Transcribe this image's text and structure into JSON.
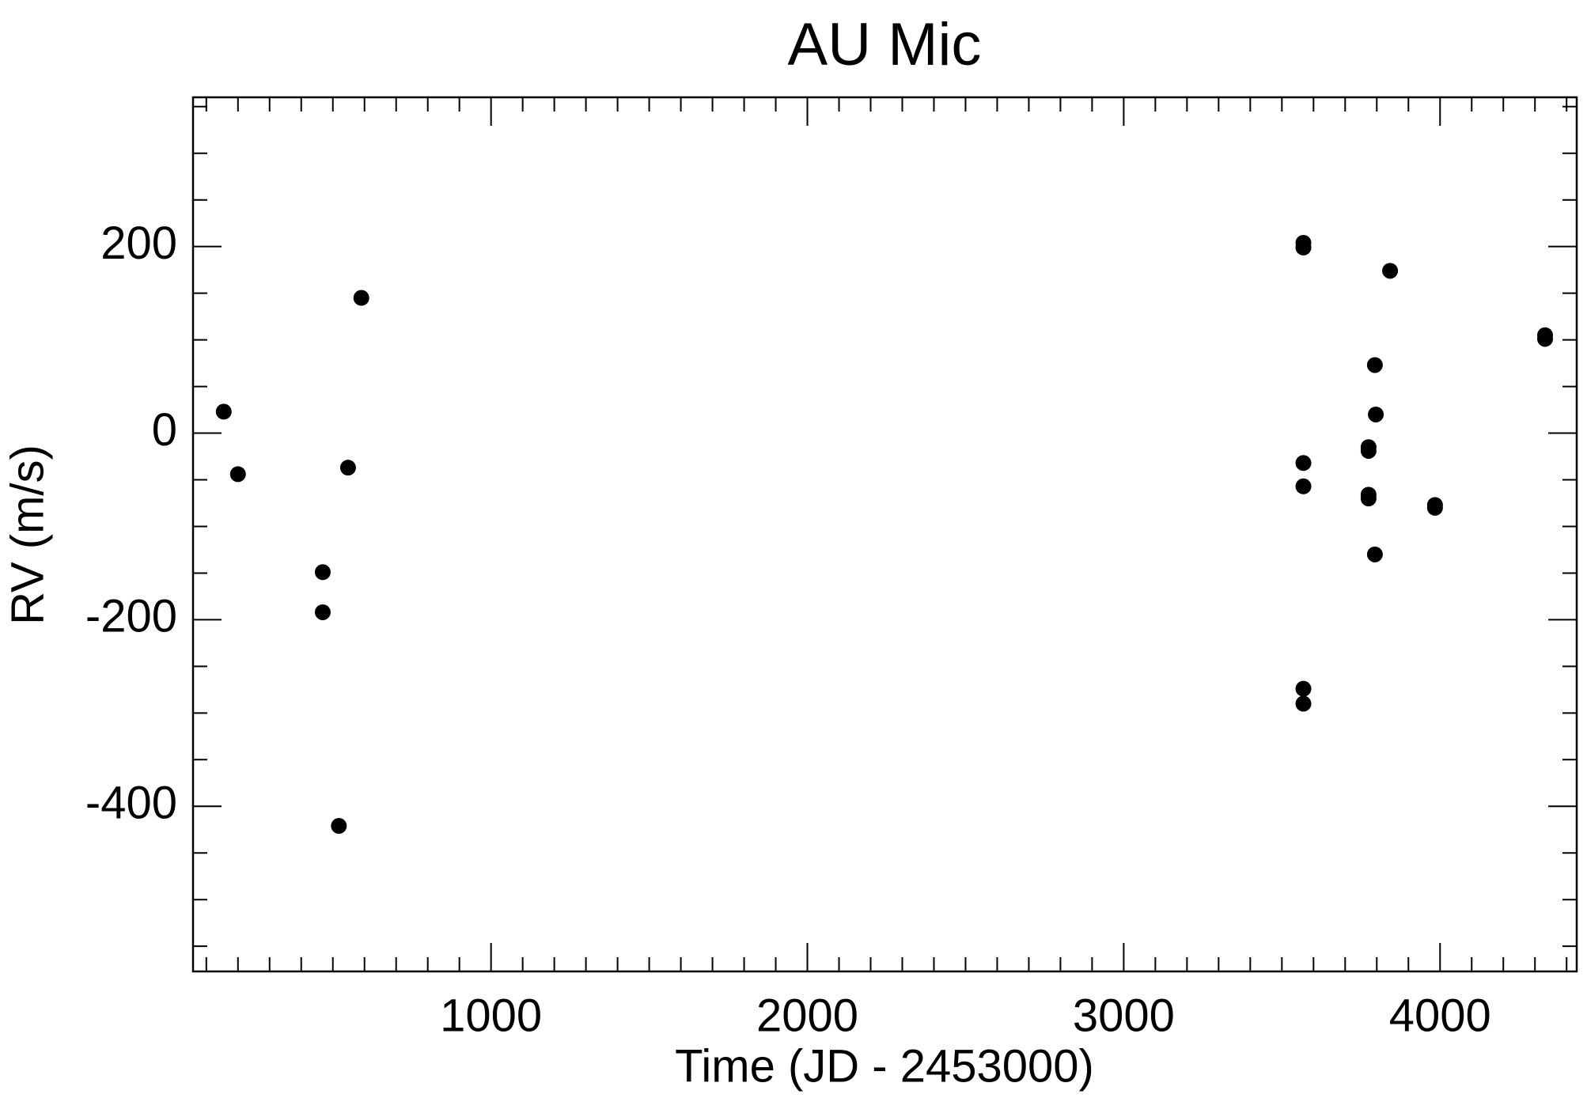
{
  "chart_data": {
    "type": "scatter",
    "title": "AU Mic",
    "x_label": "Time (JD - 2453000)",
    "y_label": "RV (m/s)",
    "series": [
      {
        "color": "#000000",
        "x": [
          155,
          200,
          468,
          468,
          519,
          548,
          590,
          3568,
          3568,
          3568,
          3568,
          3568,
          3568,
          3774,
          3774,
          3774,
          3774,
          3794,
          3797,
          3794,
          3842,
          3984,
          3984,
          4332,
          4332
        ],
        "values": [
          23,
          -44,
          -149,
          -192,
          -421,
          -37,
          145,
          204,
          199,
          -32,
          -57,
          -274,
          -290,
          -15,
          -19,
          -66,
          -70,
          73,
          20,
          -130,
          174,
          -77,
          -80,
          105,
          101
        ]
      }
    ],
    "xlim": [
      58,
      4432
    ],
    "ylim": [
      -577,
      360
    ],
    "xticks": [
      1000,
      2000,
      3000,
      4000
    ],
    "yticks": [
      -400,
      -200,
      0,
      200
    ],
    "x_minor_divisions": 10,
    "y_minor_divisions": 4
  }
}
